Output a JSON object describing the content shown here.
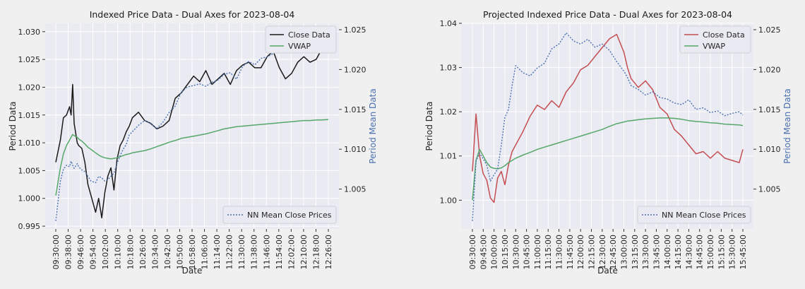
{
  "colors": {
    "figure_bg": "#f0f0f0",
    "axes_bg": "#eaeaf2",
    "grid": "#ffffff",
    "close_left": "#1a1a1a",
    "close_right": "#c44e52",
    "vwap": "#55a868",
    "nn_mean": "#4c72b0",
    "secondary_label": "#4c72b0"
  },
  "chart_data": [
    {
      "type": "line",
      "title": "Indexed Price Data - Dual Axes for 2023-08-04",
      "xlabel": "Date",
      "ylabel": "Period Data",
      "ylabel_right": "Period Mean Data",
      "ylim": [
        0.9945,
        1.0315
      ],
      "ylim_right": [
        1.0,
        1.0258
      ],
      "yticks": [
        "0.995",
        "1.000",
        "1.005",
        "1.010",
        "1.015",
        "1.020",
        "1.025",
        "1.030"
      ],
      "yticks_right": [
        "1.005",
        "1.010",
        "1.015",
        "1.020",
        "1.025"
      ],
      "xticks": [
        "09:30:00",
        "09:38:00",
        "09:46:00",
        "09:54:00",
        "10:02:00",
        "10:10:00",
        "10:18:00",
        "10:26:00",
        "10:34:00",
        "10:42:00",
        "10:50:00",
        "10:58:00",
        "11:06:00",
        "11:14:00",
        "11:22:00",
        "11:30:00",
        "11:38:00",
        "11:46:00",
        "11:54:00",
        "12:02:00",
        "12:10:00",
        "12:18:00",
        "12:26:00"
      ],
      "x_minutes": [
        0,
        3,
        5,
        7,
        9,
        10,
        11,
        12,
        14,
        15,
        17,
        19,
        21,
        23,
        26,
        28,
        30,
        32,
        34,
        36,
        38,
        40,
        42,
        44,
        46,
        48,
        50,
        54,
        58,
        62,
        66,
        70,
        74,
        78,
        82,
        86,
        90,
        94,
        98,
        102,
        106,
        110,
        114,
        118,
        122,
        126,
        130,
        134,
        138,
        142,
        146,
        150,
        154,
        158,
        162,
        166,
        170,
        174,
        178
      ],
      "series": [
        {
          "name": "Close Data",
          "axis": "left",
          "values": [
            1.0065,
            1.0105,
            1.0145,
            1.015,
            1.0165,
            1.015,
            1.0205,
            1.0135,
            1.01,
            1.0095,
            1.009,
            1.0065,
            1.0025,
            1.0005,
            0.9975,
            1.0,
            0.9965,
            1.001,
            1.004,
            1.0055,
            1.0015,
            1.007,
            1.0095,
            1.0105,
            1.012,
            1.013,
            1.0145,
            1.0155,
            1.014,
            1.0135,
            1.0125,
            1.013,
            1.014,
            1.018,
            1.019,
            1.0205,
            1.022,
            1.021,
            1.023,
            1.0205,
            1.0215,
            1.0225,
            1.0205,
            1.023,
            1.024,
            1.0245,
            1.0235,
            1.0235,
            1.0255,
            1.0265,
            1.0235,
            1.0215,
            1.0225,
            1.0245,
            1.0255,
            1.0245,
            1.025,
            1.027,
            1.0295
          ]
        },
        {
          "name": "VWAP",
          "axis": "left",
          "values": [
            1.0005,
            1.0055,
            1.008,
            1.0095,
            1.0105,
            1.011,
            1.0115,
            1.0113,
            1.011,
            1.0107,
            1.0103,
            1.0098,
            1.0092,
            1.0088,
            1.0082,
            1.0078,
            1.0075,
            1.0073,
            1.0072,
            1.0071,
            1.0072,
            1.0073,
            1.0075,
            1.0077,
            1.0079,
            1.008,
            1.0082,
            1.0084,
            1.0086,
            1.0089,
            1.0093,
            1.0097,
            1.0101,
            1.0104,
            1.0108,
            1.011,
            1.0112,
            1.0114,
            1.0116,
            1.0119,
            1.0122,
            1.0125,
            1.0127,
            1.0129,
            1.013,
            1.0131,
            1.0132,
            1.0133,
            1.0134,
            1.0135,
            1.0136,
            1.0137,
            1.0138,
            1.0139,
            1.014,
            1.014,
            1.0141,
            1.0141,
            1.0142
          ]
        },
        {
          "name": "NN Mean Close Prices",
          "axis": "right",
          "values": [
            1.001,
            1.006,
            1.0075,
            1.008,
            1.0078,
            1.0085,
            1.008,
            1.0076,
            1.0082,
            1.0078,
            1.0074,
            1.0072,
            1.0066,
            1.006,
            1.0058,
            1.0066,
            1.0064,
            1.006,
            1.0062,
            1.0066,
            1.007,
            1.0082,
            1.0092,
            1.01,
            1.0106,
            1.0118,
            1.0122,
            1.013,
            1.0136,
            1.0132,
            1.0126,
            1.0134,
            1.0146,
            1.0154,
            1.0172,
            1.0178,
            1.018,
            1.0182,
            1.0179,
            1.0184,
            1.0187,
            1.0194,
            1.0196,
            1.0188,
            1.0204,
            1.021,
            1.0206,
            1.0214,
            1.0216,
            1.022,
            1.0226,
            1.0222,
            1.0228,
            1.0226,
            1.0232,
            1.0236,
            1.023,
            1.024,
            1.0238
          ]
        }
      ],
      "legends": [
        {
          "entries": [
            "Close Data",
            "VWAP"
          ],
          "placement": "top-right"
        },
        {
          "entries": [
            "NN Mean Close Prices"
          ],
          "placement": "bottom-right"
        }
      ]
    },
    {
      "type": "line",
      "title": "Projected Indexed Price Data  - Dual Axes for 2023-08-04",
      "xlabel": "Date",
      "ylabel": "Period Data",
      "ylabel_right": "Period Mean Data",
      "ylim": [
        0.9935,
        1.04
      ],
      "ylim_right": [
        1.0,
        1.0258
      ],
      "yticks": [
        "1.00",
        "1.01",
        "1.02",
        "1.03",
        "1.04"
      ],
      "yticks_right": [
        "1.005",
        "1.010",
        "1.015",
        "1.020",
        "1.025"
      ],
      "xticks": [
        "09:30:00",
        "09:45:00",
        "10:00:00",
        "10:15:00",
        "10:30:00",
        "10:45:00",
        "11:00:00",
        "11:15:00",
        "11:30:00",
        "11:45:00",
        "12:00:00",
        "12:15:00",
        "12:30:00",
        "12:45:00",
        "13:00:00",
        "13:15:00",
        "13:30:00",
        "13:45:00",
        "14:00:00",
        "14:15:00",
        "14:30:00",
        "14:45:00",
        "15:00:00",
        "15:15:00",
        "15:30:00",
        "15:45:00"
      ],
      "x_minutes": [
        0,
        5,
        10,
        15,
        20,
        25,
        30,
        35,
        40,
        45,
        50,
        55,
        60,
        70,
        80,
        90,
        100,
        110,
        120,
        130,
        140,
        150,
        160,
        170,
        180,
        190,
        200,
        210,
        215,
        220,
        230,
        240,
        250,
        260,
        270,
        280,
        290,
        300,
        310,
        320,
        330,
        340,
        350,
        360,
        370,
        375
      ],
      "series": [
        {
          "name": "Close Data",
          "axis": "left",
          "values": [
            1.0065,
            1.0195,
            1.01,
            1.006,
            1.0045,
            1.0005,
            0.9995,
            1.005,
            1.0065,
            1.0035,
            1.008,
            1.011,
            1.0125,
            1.0155,
            1.019,
            1.0215,
            1.0205,
            1.0225,
            1.021,
            1.0245,
            1.0265,
            1.0295,
            1.0305,
            1.0325,
            1.0345,
            1.0365,
            1.0375,
            1.0335,
            1.03,
            1.0275,
            1.0255,
            1.027,
            1.025,
            1.021,
            1.0195,
            1.016,
            1.0145,
            1.0125,
            1.0105,
            1.011,
            1.0095,
            1.011,
            1.0095,
            1.009,
            1.0085,
            1.0115
          ]
        },
        {
          "name": "VWAP",
          "axis": "left",
          "values": [
            1.0,
            1.009,
            1.0115,
            1.01,
            1.0085,
            1.0075,
            1.0072,
            1.0071,
            1.0073,
            1.0078,
            1.0085,
            1.009,
            1.0095,
            1.0102,
            1.0108,
            1.0115,
            1.012,
            1.0125,
            1.013,
            1.0135,
            1.014,
            1.0145,
            1.015,
            1.0155,
            1.016,
            1.0167,
            1.0173,
            1.0177,
            1.0179,
            1.018,
            1.0182,
            1.0184,
            1.0185,
            1.0186,
            1.0186,
            1.0185,
            1.0183,
            1.018,
            1.0178,
            1.0177,
            1.0175,
            1.0174,
            1.0172,
            1.0171,
            1.017,
            1.0169
          ]
        },
        {
          "name": "NN Mean Close Prices",
          "axis": "right",
          "values": [
            1.001,
            1.0085,
            1.0095,
            1.0088,
            1.008,
            1.006,
            1.0068,
            1.0075,
            1.0105,
            1.014,
            1.015,
            1.018,
            1.0205,
            1.0196,
            1.0192,
            1.0202,
            1.0208,
            1.0226,
            1.0232,
            1.0246,
            1.0236,
            1.0232,
            1.0238,
            1.0228,
            1.0232,
            1.0224,
            1.021,
            1.0198,
            1.019,
            1.018,
            1.0175,
            1.0168,
            1.0172,
            1.0165,
            1.0163,
            1.0158,
            1.0156,
            1.0162,
            1.015,
            1.0152,
            1.0146,
            1.0148,
            1.0142,
            1.0145,
            1.0147,
            1.0143
          ]
        }
      ],
      "legends": [
        {
          "entries": [
            "Close Data",
            "VWAP"
          ],
          "placement": "top-right"
        },
        {
          "entries": [
            "NN Mean Close Prices"
          ],
          "placement": "bottom-right"
        }
      ]
    }
  ]
}
